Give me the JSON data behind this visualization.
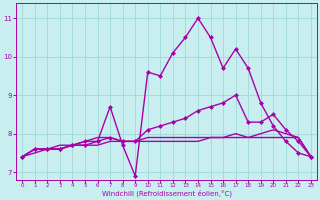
{
  "xlabel": "Windchill (Refroidissement éolien,°C)",
  "background_color": "#c8eef0",
  "grid_color": "#a0d8d8",
  "line_color": "#aa00aa",
  "xlim": [
    -0.5,
    23.5
  ],
  "ylim": [
    6.8,
    11.4
  ],
  "yticks": [
    7,
    8,
    9,
    10,
    11
  ],
  "xticks": [
    0,
    1,
    2,
    3,
    4,
    5,
    6,
    7,
    8,
    9,
    10,
    11,
    12,
    13,
    14,
    15,
    16,
    17,
    18,
    19,
    20,
    21,
    22,
    23
  ],
  "series": [
    [
      7.4,
      7.6,
      7.6,
      7.6,
      7.7,
      7.7,
      7.8,
      8.7,
      7.7,
      6.9,
      9.6,
      9.5,
      10.1,
      10.5,
      11.0,
      10.5,
      9.7,
      10.2,
      9.7,
      8.8,
      8.2,
      7.8,
      7.5,
      7.4
    ],
    [
      7.4,
      7.6,
      7.6,
      7.6,
      7.7,
      7.8,
      7.8,
      7.9,
      7.8,
      7.8,
      8.1,
      8.2,
      8.3,
      8.4,
      8.6,
      8.7,
      8.8,
      9.0,
      8.3,
      8.3,
      8.5,
      8.1,
      7.8,
      7.4
    ],
    [
      7.4,
      7.5,
      7.6,
      7.6,
      7.7,
      7.7,
      7.7,
      7.8,
      7.8,
      7.8,
      7.8,
      7.8,
      7.8,
      7.8,
      7.8,
      7.9,
      7.9,
      7.9,
      7.9,
      7.9,
      7.9,
      7.9,
      7.9,
      7.4
    ],
    [
      7.4,
      7.6,
      7.6,
      7.7,
      7.7,
      7.8,
      7.9,
      7.9,
      7.8,
      7.8,
      7.9,
      7.9,
      7.9,
      7.9,
      7.9,
      7.9,
      7.9,
      8.0,
      7.9,
      8.0,
      8.1,
      8.0,
      7.9,
      7.4
    ]
  ],
  "show_markers": [
    true,
    true,
    false,
    false
  ],
  "linewidths": [
    1.0,
    1.0,
    1.0,
    1.0
  ]
}
